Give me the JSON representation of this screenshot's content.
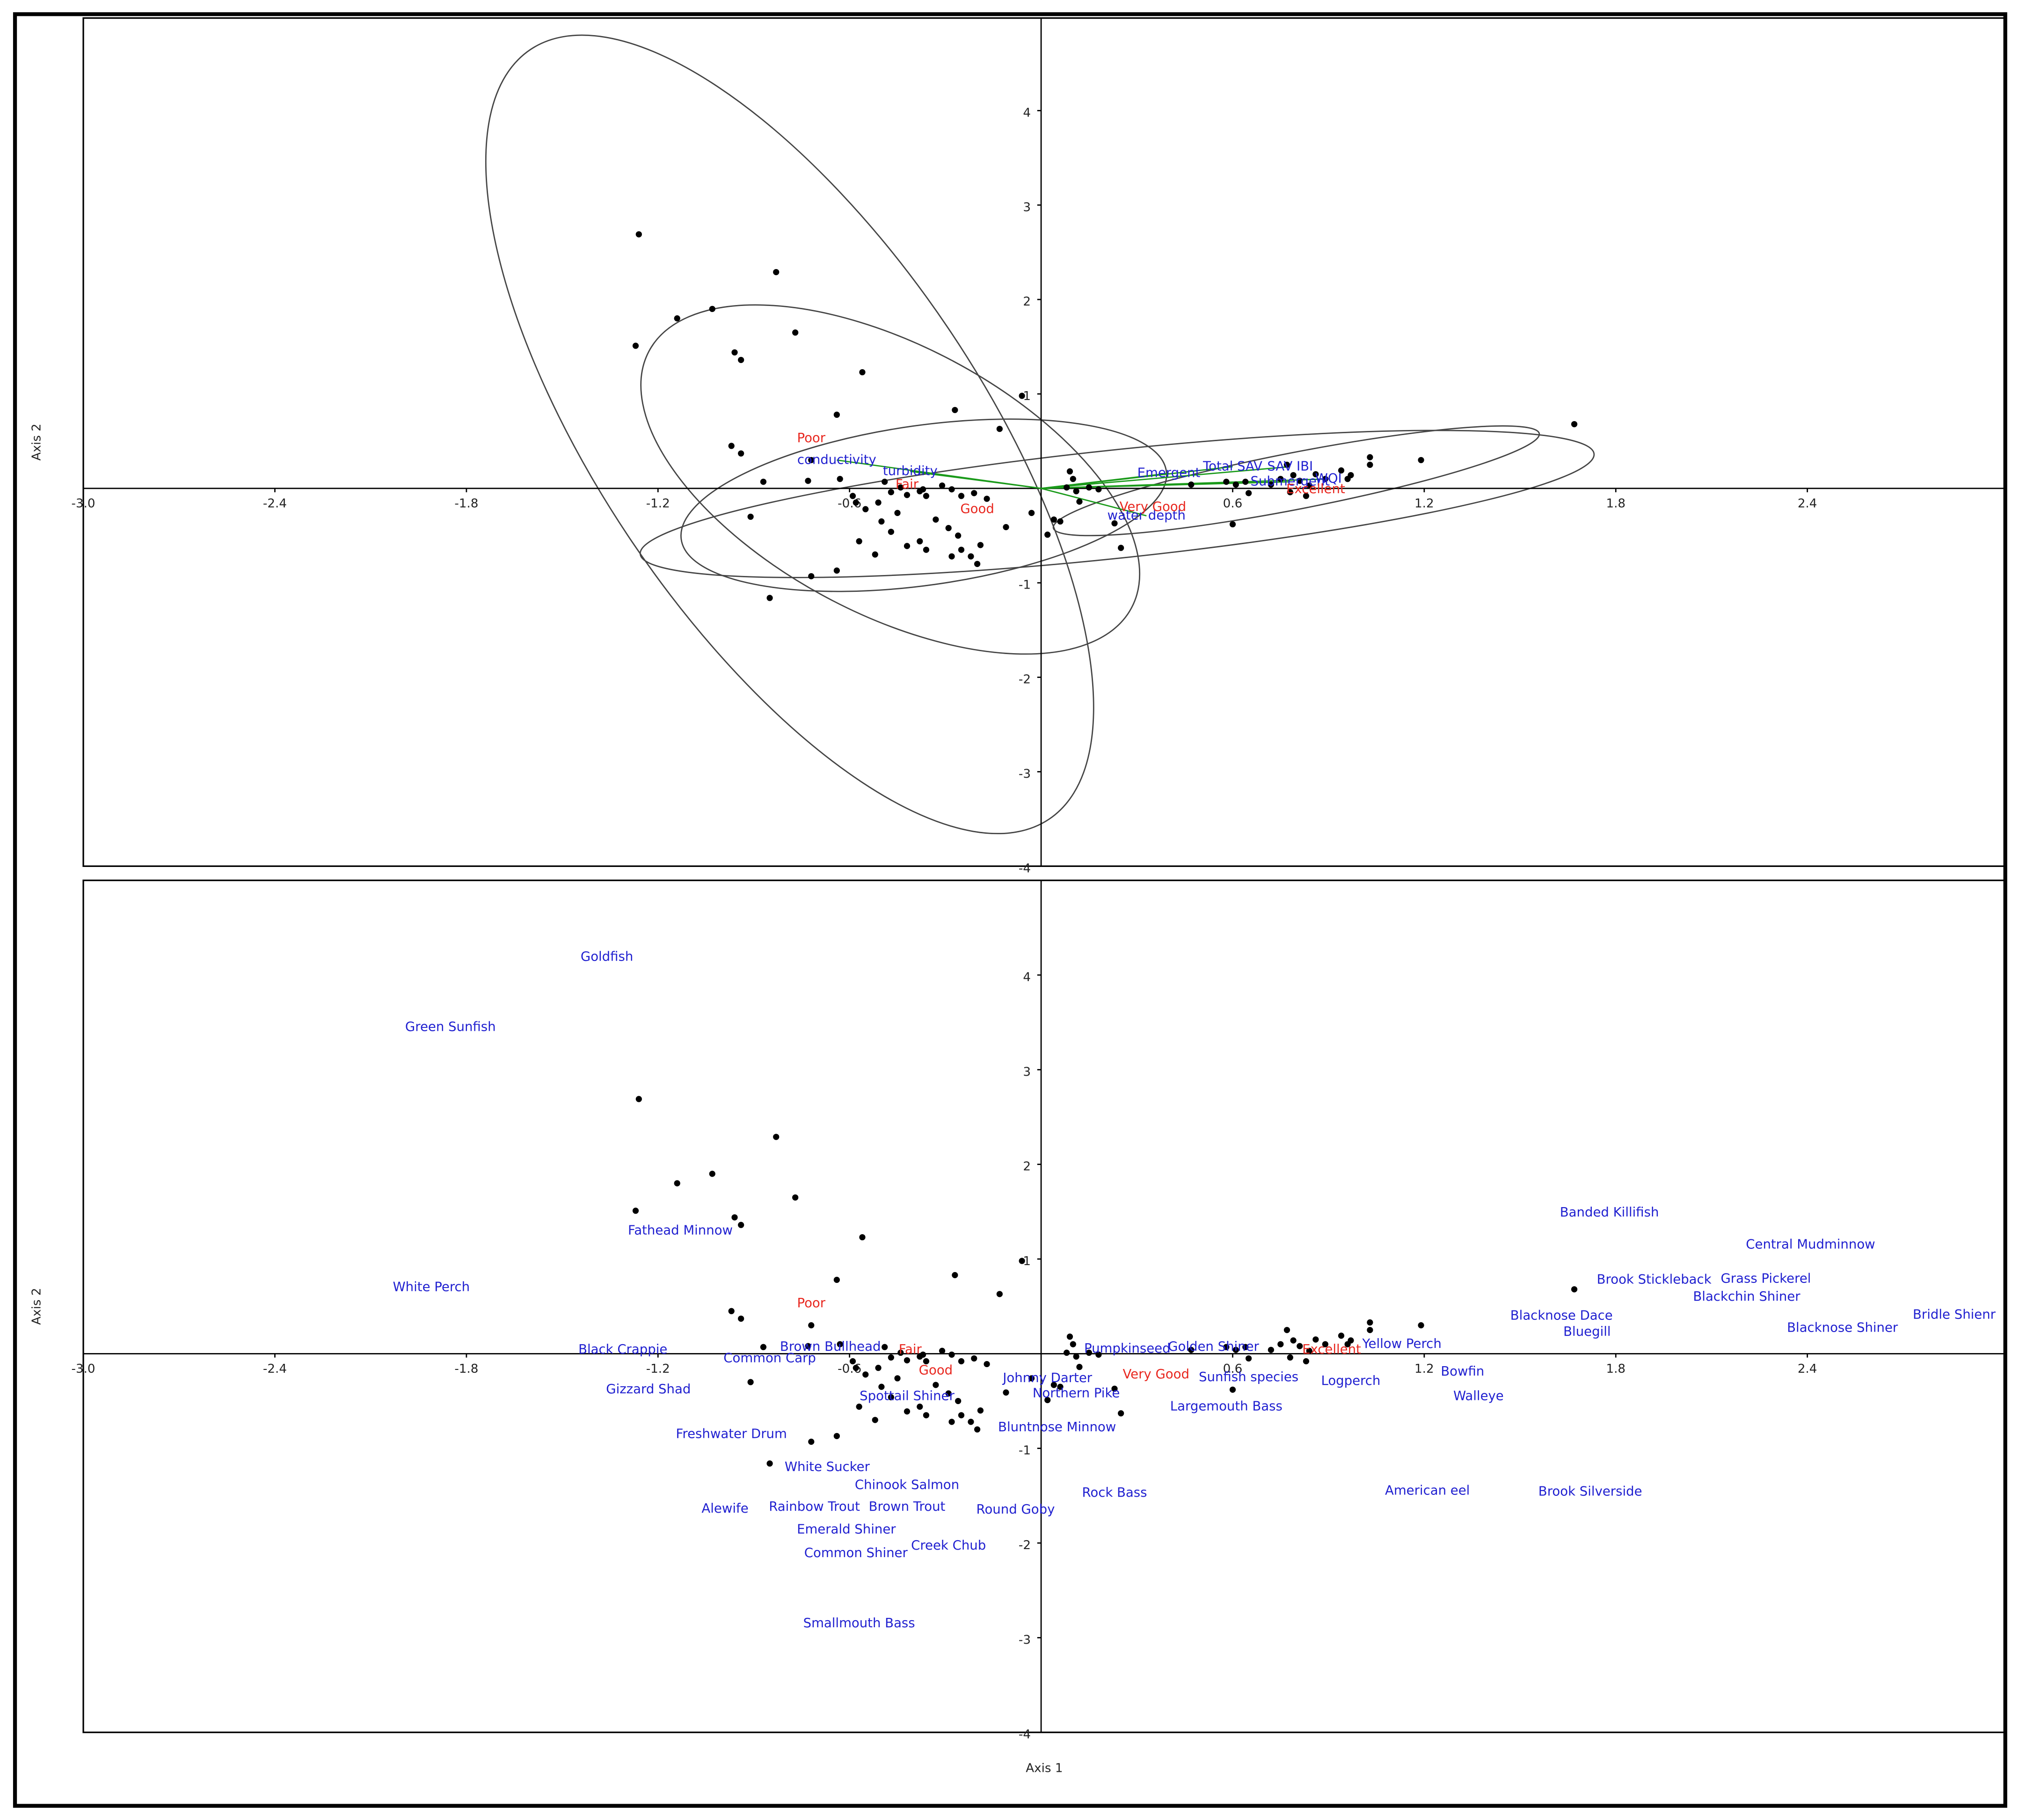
{
  "chart_data": [
    {
      "type": "scatter",
      "y_label": "Axis 2",
      "color": "#000000",
      "group_color": "#e8271f",
      "vector_color": "#1a9a1a",
      "vector_label_color": "#2020d0",
      "xlim": [
        -3.0,
        3.02
      ],
      "ylim": [
        -4,
        4.98
      ],
      "xticks": [
        {
          "value": -3,
          "label": "-3.0"
        },
        -2.4,
        -1.8,
        -1.2,
        -0.6,
        0.6,
        1.2,
        1.8,
        2.4
      ],
      "yticks": [
        -4,
        -3,
        -2,
        -1,
        1,
        2,
        3,
        4
      ],
      "x": [
        -1.26,
        -0.83,
        -1.14,
        -1.03,
        -0.77,
        -1.27,
        -0.96,
        -0.94,
        -0.56,
        -0.06,
        -0.27,
        -0.64,
        -0.13,
        -0.97,
        -0.94,
        -0.72,
        -0.87,
        -0.73,
        -0.63,
        -0.49,
        -0.91,
        -0.85,
        -0.72,
        -0.64,
        -0.59,
        -0.58,
        -0.55,
        -0.51,
        -0.47,
        -0.44,
        -0.42,
        -0.38,
        -0.36,
        -0.37,
        -0.31,
        -0.28,
        -0.25,
        -0.21,
        -0.17,
        -0.5,
        -0.47,
        -0.45,
        -0.42,
        -0.38,
        -0.36,
        -0.33,
        -0.29,
        -0.28,
        -0.25,
        -0.22,
        -0.26,
        -0.2,
        -0.19,
        -0.52,
        -0.57,
        -0.11,
        -0.03,
        0.02,
        0.09,
        0.1,
        0.11,
        0.12,
        0.08,
        0.15,
        0.18,
        0.06,
        0.04,
        0.23,
        0.25,
        0.47,
        0.58,
        0.61,
        0.64,
        0.6,
        0.65,
        0.72,
        0.75,
        0.77,
        0.79,
        0.81,
        0.78,
        0.84,
        0.86,
        0.89,
        0.94,
        0.96,
        0.97,
        0.83,
        1.03,
        1.03,
        1.19,
        1.67
      ],
      "values": [
        2.69,
        2.29,
        1.8,
        1.9,
        1.65,
        1.51,
        1.44,
        1.36,
        1.23,
        0.98,
        0.83,
        0.78,
        0.63,
        0.45,
        0.37,
        0.3,
        0.07,
        0.08,
        0.1,
        0.07,
        -0.3,
        -1.16,
        -0.93,
        -0.87,
        -0.08,
        -0.15,
        -0.22,
        -0.15,
        -0.04,
        0.01,
        -0.07,
        -0.03,
        -0.08,
        -0.01,
        0.03,
        -0.01,
        -0.08,
        -0.05,
        -0.11,
        -0.35,
        -0.46,
        -0.26,
        -0.61,
        -0.56,
        -0.65,
        -0.33,
        -0.42,
        -0.72,
        -0.65,
        -0.72,
        -0.5,
        -0.8,
        -0.6,
        -0.7,
        -0.56,
        -0.41,
        -0.26,
        -0.49,
        0.18,
        0.1,
        -0.03,
        -0.14,
        0.01,
        0.01,
        -0.01,
        -0.35,
        -0.33,
        -0.37,
        -0.63,
        0.04,
        0.07,
        0.04,
        0.07,
        -0.38,
        -0.05,
        0.04,
        0.1,
        0.25,
        0.14,
        0.08,
        -0.04,
        0.03,
        0.15,
        0.1,
        0.19,
        0.1,
        0.14,
        -0.08,
        0.33,
        0.25,
        0.3,
        0.68
      ],
      "vectors": [
        {
          "label": "conductivity",
          "x": -0.64,
          "y": 0.3
        },
        {
          "label": "turbidity",
          "x": -0.41,
          "y": 0.18
        },
        {
          "label": "Emergent",
          "x": 0.4,
          "y": 0.16
        },
        {
          "label": "Total SAV",
          "x": 0.6,
          "y": 0.23
        },
        {
          "label": "SAV IBI",
          "x": 0.78,
          "y": 0.23
        },
        {
          "label": "Submergent",
          "x": 0.78,
          "y": 0.07
        },
        {
          "label": "WQI",
          "x": 0.9,
          "y": 0.1
        },
        {
          "label": "water depth",
          "x": 0.33,
          "y": -0.29
        }
      ],
      "groups": [
        {
          "label": "Poor",
          "x": -0.72,
          "y": 0.53
        },
        {
          "label": "Fair",
          "x": -0.42,
          "y": 0.04
        },
        {
          "label": "Good",
          "x": -0.2,
          "y": -0.22
        },
        {
          "label": "Very Good",
          "x": 0.35,
          "y": -0.2
        },
        {
          "label": "Excellent",
          "x": 0.86,
          "y": -0.01
        }
      ]
    },
    {
      "type": "scatter",
      "y_label": "Axis 2",
      "x_label": "Axis 1",
      "color": "#000000",
      "group_color": "#e8271f",
      "species_color": "#2020d0",
      "xlim": [
        -3.0,
        3.02
      ],
      "ylim": [
        -4,
        5.0
      ],
      "xticks": [
        {
          "value": -3,
          "label": "-3.0"
        },
        -2.4,
        -1.8,
        -1.2,
        -0.6,
        0.6,
        1.2,
        1.8,
        2.4
      ],
      "yticks": [
        -4,
        -3,
        -2,
        -1,
        1,
        2,
        3,
        4
      ],
      "x": [
        -1.26,
        -0.83,
        -1.14,
        -1.03,
        -0.77,
        -1.27,
        -0.96,
        -0.94,
        -0.56,
        -0.06,
        -0.27,
        -0.64,
        -0.13,
        -0.97,
        -0.94,
        -0.72,
        -0.87,
        -0.73,
        -0.63,
        -0.49,
        -0.91,
        -0.85,
        -0.72,
        -0.64,
        -0.59,
        -0.58,
        -0.55,
        -0.51,
        -0.47,
        -0.44,
        -0.42,
        -0.38,
        -0.36,
        -0.37,
        -0.31,
        -0.28,
        -0.25,
        -0.21,
        -0.17,
        -0.5,
        -0.47,
        -0.45,
        -0.42,
        -0.38,
        -0.36,
        -0.33,
        -0.29,
        -0.28,
        -0.25,
        -0.22,
        -0.26,
        -0.2,
        -0.19,
        -0.52,
        -0.57,
        -0.11,
        -0.03,
        0.02,
        0.09,
        0.1,
        0.11,
        0.12,
        0.08,
        0.15,
        0.18,
        0.06,
        0.04,
        0.23,
        0.25,
        0.47,
        0.58,
        0.61,
        0.64,
        0.6,
        0.65,
        0.72,
        0.75,
        0.77,
        0.79,
        0.81,
        0.78,
        0.84,
        0.86,
        0.89,
        0.94,
        0.96,
        0.97,
        0.83,
        1.03,
        1.03,
        1.19,
        1.67
      ],
      "values": [
        2.69,
        2.29,
        1.8,
        1.9,
        1.65,
        1.51,
        1.44,
        1.36,
        1.23,
        0.98,
        0.83,
        0.78,
        0.63,
        0.45,
        0.37,
        0.3,
        0.07,
        0.08,
        0.1,
        0.07,
        -0.3,
        -1.16,
        -0.93,
        -0.87,
        -0.08,
        -0.15,
        -0.22,
        -0.15,
        -0.04,
        0.01,
        -0.07,
        -0.03,
        -0.08,
        -0.01,
        0.03,
        -0.01,
        -0.08,
        -0.05,
        -0.11,
        -0.35,
        -0.46,
        -0.26,
        -0.61,
        -0.56,
        -0.65,
        -0.33,
        -0.42,
        -0.72,
        -0.65,
        -0.72,
        -0.5,
        -0.8,
        -0.6,
        -0.7,
        -0.56,
        -0.41,
        -0.26,
        -0.49,
        0.18,
        0.1,
        -0.03,
        -0.14,
        0.01,
        0.01,
        -0.01,
        -0.35,
        -0.33,
        -0.37,
        -0.63,
        0.04,
        0.07,
        0.04,
        0.07,
        -0.38,
        -0.05,
        0.04,
        0.1,
        0.25,
        0.14,
        0.08,
        -0.04,
        0.03,
        0.15,
        0.1,
        0.19,
        0.1,
        0.14,
        -0.08,
        0.33,
        0.25,
        0.3,
        0.68
      ],
      "groups": [
        {
          "label": "Poor",
          "x": -0.72,
          "y": 0.53
        },
        {
          "label": "Fair",
          "x": -0.41,
          "y": 0.04
        },
        {
          "label": "Good",
          "x": -0.33,
          "y": -0.18
        },
        {
          "label": "Very Good",
          "x": 0.36,
          "y": -0.22
        },
        {
          "label": "Excellent",
          "x": 0.91,
          "y": 0.04
        }
      ],
      "species": [
        {
          "label": "Goldfish",
          "x": -1.36,
          "y": 4.19
        },
        {
          "label": "Green Sunfish",
          "x": -1.85,
          "y": 3.45
        },
        {
          "label": "Fathead Minnow",
          "x": -1.13,
          "y": 1.3
        },
        {
          "label": "White Perch",
          "x": -1.91,
          "y": 0.7
        },
        {
          "label": "Black Crappie",
          "x": -1.31,
          "y": 0.04
        },
        {
          "label": "Gizzard Shad",
          "x": -1.23,
          "y": -0.38
        },
        {
          "label": "Common Carp",
          "x": -0.85,
          "y": -0.05
        },
        {
          "label": "Brown Bullhead",
          "x": -0.66,
          "y": 0.07
        },
        {
          "label": "Freshwater Drum",
          "x": -0.97,
          "y": -0.85
        },
        {
          "label": "White Sucker",
          "x": -0.67,
          "y": -1.2
        },
        {
          "label": "Alewife",
          "x": -0.99,
          "y": -1.64
        },
        {
          "label": "Rainbow Trout",
          "x": -0.71,
          "y": -1.62
        },
        {
          "label": "Chinook Salmon",
          "x": -0.42,
          "y": -1.39
        },
        {
          "label": "Brown Trout",
          "x": -0.42,
          "y": -1.62
        },
        {
          "label": "Emerald Shiner",
          "x": -0.61,
          "y": -1.86
        },
        {
          "label": "Common Shiner",
          "x": -0.58,
          "y": -2.11
        },
        {
          "label": "Creek Chub",
          "x": -0.29,
          "y": -2.03
        },
        {
          "label": "Round Goby",
          "x": -0.08,
          "y": -1.65
        },
        {
          "label": "Smallmouth Bass",
          "x": -0.57,
          "y": -2.85
        },
        {
          "label": "Spottail Shiner",
          "x": -0.42,
          "y": -0.45
        },
        {
          "label": "Johnny Darter",
          "x": 0.02,
          "y": -0.26
        },
        {
          "label": "Northern Pike",
          "x": 0.11,
          "y": -0.42
        },
        {
          "label": "Bluntnose Minnow",
          "x": 0.05,
          "y": -0.78
        },
        {
          "label": "Rock Bass",
          "x": 0.23,
          "y": -1.47
        },
        {
          "label": "Pumpkinseed",
          "x": 0.27,
          "y": 0.05
        },
        {
          "label": "Golden Shiner",
          "x": 0.54,
          "y": 0.07
        },
        {
          "label": "Sunfish species",
          "x": 0.65,
          "y": -0.25
        },
        {
          "label": "Largemouth Bass",
          "x": 0.58,
          "y": -0.56
        },
        {
          "label": "Logperch",
          "x": 0.97,
          "y": -0.29
        },
        {
          "label": "Yellow Perch",
          "x": 1.13,
          "y": 0.1
        },
        {
          "label": "Bowfin",
          "x": 1.32,
          "y": -0.19
        },
        {
          "label": "Walleye",
          "x": 1.37,
          "y": -0.45
        },
        {
          "label": "American eel",
          "x": 1.21,
          "y": -1.45
        },
        {
          "label": "Brook Silverside",
          "x": 1.72,
          "y": -1.46
        },
        {
          "label": "Banded Killifish",
          "x": 1.78,
          "y": 1.49
        },
        {
          "label": "Central Mudminnow",
          "x": 2.41,
          "y": 1.15
        },
        {
          "label": "Brook Stickleback",
          "x": 1.92,
          "y": 0.78
        },
        {
          "label": "Grass Pickerel",
          "x": 2.27,
          "y": 0.79
        },
        {
          "label": "Blackchin Shiner",
          "x": 2.21,
          "y": 0.6
        },
        {
          "label": "Blacknose Dace",
          "x": 1.63,
          "y": 0.4
        },
        {
          "label": "Bluegill",
          "x": 1.71,
          "y": 0.23
        },
        {
          "label": "Blacknose Shiner",
          "x": 2.51,
          "y": 0.27
        },
        {
          "label": "Bridle Shienr",
          "x": 2.86,
          "y": 0.41
        }
      ]
    }
  ]
}
